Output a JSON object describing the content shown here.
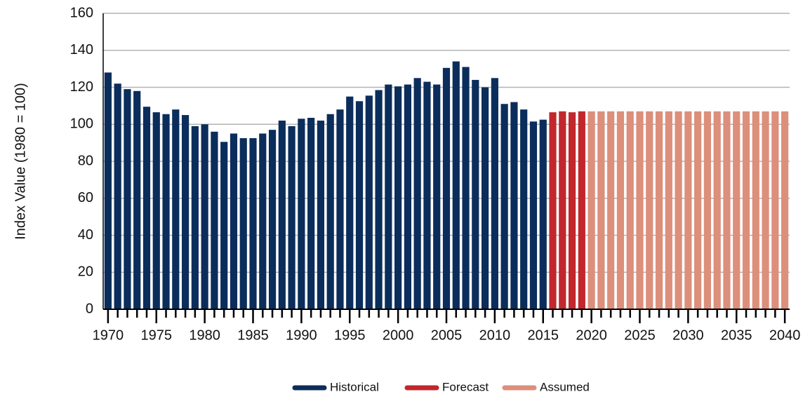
{
  "chart_data": {
    "type": "bar",
    "y_label": "Index Value (1980 = 100)",
    "categories": [
      "1970",
      null,
      null,
      null,
      null,
      "1975",
      null,
      null,
      null,
      null,
      "1980",
      null,
      null,
      null,
      null,
      "1985",
      null,
      null,
      null,
      null,
      "1990",
      null,
      null,
      null,
      null,
      "1995",
      null,
      null,
      null,
      null,
      "2000",
      null,
      null,
      null,
      null,
      "2005",
      null,
      null,
      null,
      null,
      "2010",
      null,
      null,
      null,
      null,
      "2015",
      null,
      null,
      null,
      null,
      "2020",
      null,
      null,
      null,
      null,
      "2025",
      null,
      null,
      null,
      null,
      "2030",
      null,
      null,
      null,
      null,
      "2035",
      null,
      null,
      null,
      null,
      "2040"
    ],
    "series": [
      {
        "name": "Historical",
        "color": "#0b2d5b",
        "values": [
          128,
          122,
          119,
          118,
          109.5,
          106.5,
          105.5,
          108,
          105,
          99,
          100,
          96,
          90.5,
          95,
          92.5,
          92.5,
          95,
          97,
          102,
          99,
          103,
          103.5,
          102,
          105.5,
          108,
          115,
          112.5,
          115.5,
          118.5,
          121.5,
          120.5,
          121.5,
          125,
          123,
          121.5,
          130.5,
          134,
          131,
          124,
          120,
          125,
          111,
          112,
          108,
          101.5,
          102.5,
          null,
          null,
          null,
          null,
          null,
          null,
          null,
          null,
          null,
          null,
          null,
          null,
          null,
          null,
          null,
          null,
          null,
          null,
          null,
          null,
          null,
          null,
          null,
          null,
          null
        ]
      },
      {
        "name": "Forecast",
        "color": "#c1272d",
        "values": [
          null,
          null,
          null,
          null,
          null,
          null,
          null,
          null,
          null,
          null,
          null,
          null,
          null,
          null,
          null,
          null,
          null,
          null,
          null,
          null,
          null,
          null,
          null,
          null,
          null,
          null,
          null,
          null,
          null,
          null,
          null,
          null,
          null,
          null,
          null,
          null,
          null,
          null,
          null,
          null,
          null,
          null,
          null,
          null,
          null,
          null,
          106.5,
          107,
          106.5,
          107,
          null,
          null,
          null,
          null,
          null,
          null,
          null,
          null,
          null,
          null,
          null,
          null,
          null,
          null,
          null,
          null,
          null,
          null,
          null,
          null,
          null
        ]
      },
      {
        "name": "Assumed",
        "color": "#dc8f7b",
        "values": [
          null,
          null,
          null,
          null,
          null,
          null,
          null,
          null,
          null,
          null,
          null,
          null,
          null,
          null,
          null,
          null,
          null,
          null,
          null,
          null,
          null,
          null,
          null,
          null,
          null,
          null,
          null,
          null,
          null,
          null,
          null,
          null,
          null,
          null,
          null,
          null,
          null,
          null,
          null,
          null,
          null,
          null,
          null,
          null,
          null,
          null,
          null,
          null,
          null,
          null,
          107,
          107,
          107,
          107,
          107,
          107,
          107,
          107,
          107,
          107,
          107,
          107,
          107,
          107,
          107,
          107,
          107,
          107,
          107,
          107,
          107
        ]
      }
    ],
    "ylim": [
      0,
      160
    ],
    "yticks": [
      0,
      20,
      40,
      60,
      80,
      100,
      120,
      140,
      160
    ],
    "grid": true,
    "legend": "bottom"
  }
}
